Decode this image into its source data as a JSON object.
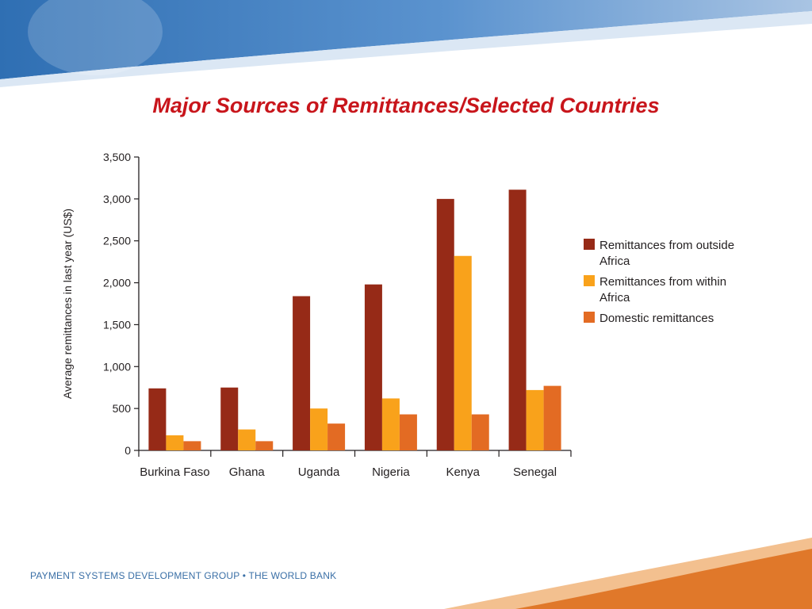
{
  "slide": {
    "title": "Major Sources of Remittances/Selected Countries",
    "footer": "PAYMENT SYSTEMS DEVELOPMENT GROUP • THE WORLD BANK"
  },
  "colors": {
    "title": "#c8151b",
    "banner_dark": "#2f6fb3",
    "banner_light": "#a9c4e3",
    "footer_orange": "#e0782a",
    "footer_text": "#3a6fa6"
  },
  "chart_data": {
    "type": "bar",
    "title": "",
    "xlabel": "",
    "ylabel": "Average remittances in last year (US$)",
    "ylim": [
      0,
      3500
    ],
    "yticks": [
      0,
      500,
      1000,
      1500,
      2000,
      2500,
      3000,
      3500
    ],
    "ytick_labels": [
      "0",
      "500",
      "1,000",
      "1,500",
      "2,000",
      "2,500",
      "3,000",
      "3,500"
    ],
    "categories": [
      "Burkina Faso",
      "Ghana",
      "Uganda",
      "Nigeria",
      "Kenya",
      "Senegal"
    ],
    "series": [
      {
        "name": "Remittances from outside Africa",
        "legend_lines": [
          "Remittances from outside",
          "Africa"
        ],
        "color": "#962a17",
        "values": [
          740,
          750,
          1840,
          1980,
          3000,
          3110
        ]
      },
      {
        "name": "Remittances from within Africa",
        "legend_lines": [
          "Remittances from within",
          "Africa"
        ],
        "color": "#f9a21b",
        "values": [
          180,
          250,
          500,
          620,
          2320,
          720
        ]
      },
      {
        "name": "Domestic remittances",
        "legend_lines": [
          "Domestic remittances"
        ],
        "color": "#e36b23",
        "values": [
          110,
          110,
          320,
          430,
          430,
          770
        ]
      }
    ],
    "grid": false,
    "legend_position": "right"
  }
}
